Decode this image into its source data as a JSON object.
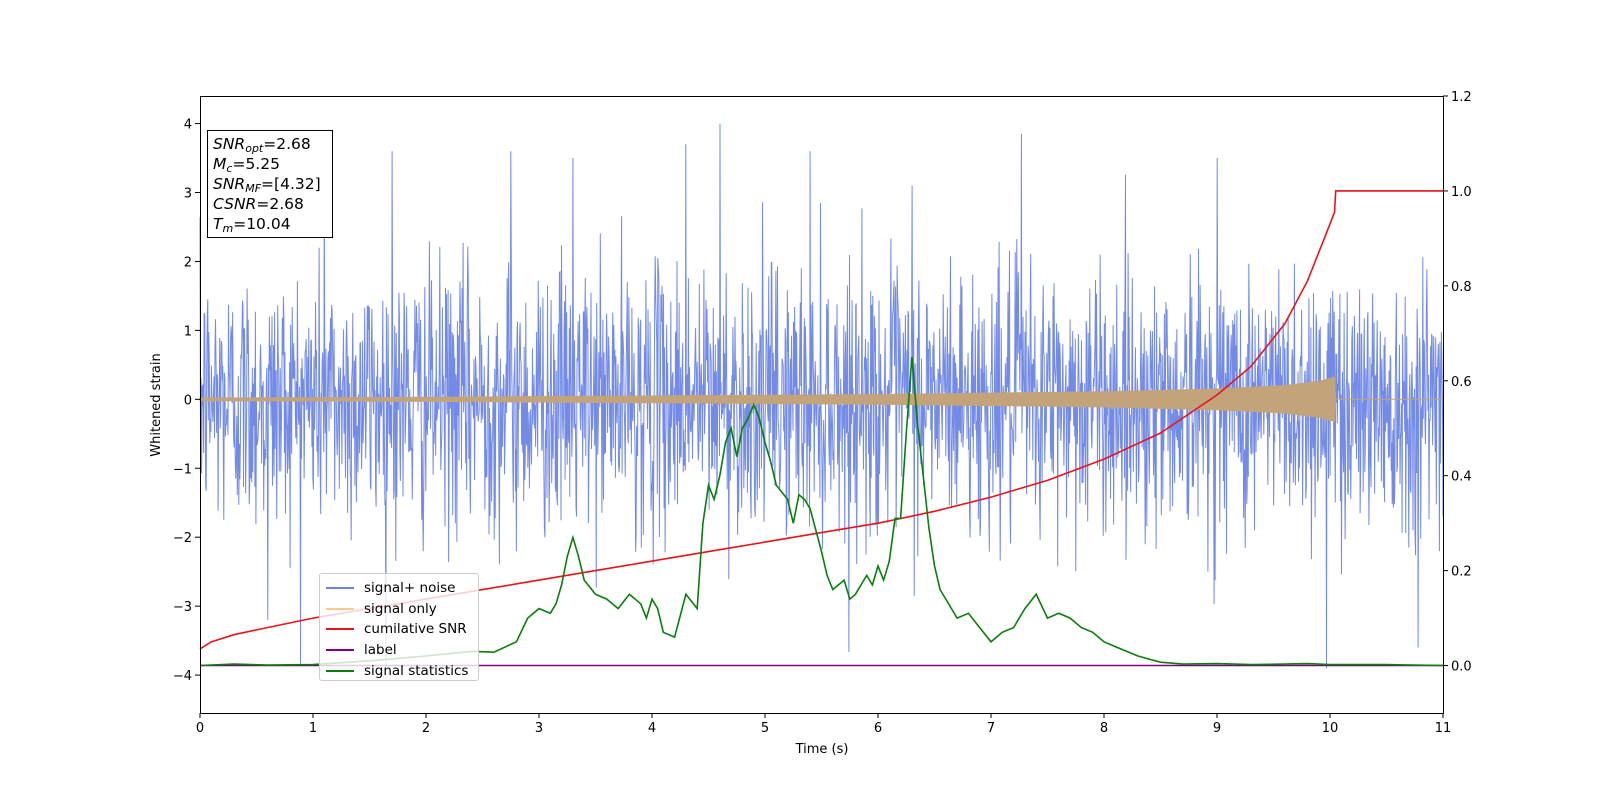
{
  "chart_data": {
    "type": "line",
    "xlabel": "Time (s)",
    "ylabel": "Whitened strain",
    "xlim": [
      0,
      11
    ],
    "ylim": [
      -4.55,
      4.4
    ],
    "y2lim": [
      -0.1,
      1.2
    ],
    "x_ticks": [
      "0",
      "1",
      "2",
      "3",
      "4",
      "5",
      "6",
      "7",
      "8",
      "9",
      "10",
      "11"
    ],
    "y_ticks": [
      "−4",
      "−3",
      "−2",
      "−1",
      "0",
      "1",
      "2",
      "3",
      "4"
    ],
    "y2_ticks": [
      "0.0",
      "0.2",
      "0.4",
      "0.6",
      "0.8",
      "1.0",
      "1.2"
    ],
    "grid": false,
    "legend_position": "lower-left",
    "annotation": {
      "snr_opt": "2.68",
      "mc": "5.25",
      "snr_mf": "[4.32]",
      "csnr": "2.68",
      "tm": "10.04"
    },
    "series": [
      {
        "name": "signal+ noise",
        "axis": "left",
        "color": "#6b85e6",
        "description_values": "noise band approx within [-2, 2] with spikes up to 4.0 and down to -3.9",
        "peaks": [
          [
            0.6,
            -3.2
          ],
          [
            1.1,
            3.4
          ],
          [
            1.7,
            3.6
          ],
          [
            2.75,
            3.6
          ],
          [
            3.3,
            3.5
          ],
          [
            4.3,
            3.7
          ],
          [
            4.6,
            4.0
          ],
          [
            5.4,
            3.6
          ],
          [
            6.3,
            3.1
          ],
          [
            7.27,
            3.85
          ],
          [
            9.0,
            3.5
          ],
          [
            9.97,
            -3.9
          ],
          [
            10.78,
            -3.6
          ]
        ]
      },
      {
        "name": "signal only",
        "axis": "left",
        "color": "#c2a37a",
        "envelope": [
          [
            0,
            0.02
          ],
          [
            2,
            0.03
          ],
          [
            4,
            0.05
          ],
          [
            6,
            0.07
          ],
          [
            8,
            0.11
          ],
          [
            9,
            0.15
          ],
          [
            9.6,
            0.2
          ],
          [
            9.9,
            0.26
          ],
          [
            10.04,
            0.32
          ],
          [
            10.05,
            0.0
          ],
          [
            11,
            0.0
          ]
        ]
      },
      {
        "name": "cumilative SNR",
        "axis": "right",
        "color": "#e8141a",
        "x": [
          0,
          0.1,
          0.3,
          0.5,
          1,
          1.5,
          2,
          2.5,
          3,
          3.5,
          4,
          4.5,
          5,
          5.5,
          6,
          6.5,
          7,
          7.5,
          8,
          8.5,
          9,
          9.3,
          9.6,
          9.8,
          9.95,
          10.04,
          10.05,
          11
        ],
        "y": [
          0.035,
          0.05,
          0.065,
          0.075,
          0.1,
          0.12,
          0.14,
          0.16,
          0.18,
          0.2,
          0.22,
          0.24,
          0.26,
          0.28,
          0.3,
          0.325,
          0.355,
          0.39,
          0.435,
          0.49,
          0.57,
          0.63,
          0.72,
          0.81,
          0.9,
          0.955,
          1.0,
          1.0
        ]
      },
      {
        "name": "label",
        "axis": "right",
        "color": "#800080",
        "x": [
          0,
          11
        ],
        "y": [
          0,
          0
        ]
      },
      {
        "name": "signal statistics",
        "axis": "right",
        "color": "#0a7d0a",
        "x": [
          0,
          0.3,
          0.6,
          1.0,
          1.5,
          2.0,
          2.2,
          2.4,
          2.6,
          2.8,
          2.9,
          3.0,
          3.1,
          3.15,
          3.2,
          3.25,
          3.3,
          3.35,
          3.4,
          3.5,
          3.6,
          3.7,
          3.8,
          3.9,
          3.95,
          4.0,
          4.05,
          4.1,
          4.2,
          4.3,
          4.4,
          4.45,
          4.5,
          4.55,
          4.6,
          4.65,
          4.7,
          4.75,
          4.8,
          4.85,
          4.9,
          4.95,
          5.0,
          5.05,
          5.1,
          5.2,
          5.25,
          5.3,
          5.35,
          5.4,
          5.5,
          5.55,
          5.6,
          5.7,
          5.75,
          5.8,
          5.9,
          5.95,
          6.0,
          6.05,
          6.1,
          6.15,
          6.2,
          6.25,
          6.3,
          6.35,
          6.4,
          6.45,
          6.5,
          6.55,
          6.6,
          6.7,
          6.8,
          6.9,
          7.0,
          7.1,
          7.2,
          7.3,
          7.4,
          7.5,
          7.6,
          7.7,
          7.8,
          7.9,
          8.0,
          8.1,
          8.3,
          8.5,
          8.7,
          9.0,
          9.3,
          9.6,
          9.8,
          10.0,
          10.5,
          11.0
        ],
        "y": [
          0.0,
          0.003,
          0.001,
          0.002,
          0.01,
          0.02,
          0.025,
          0.03,
          0.028,
          0.05,
          0.1,
          0.12,
          0.11,
          0.13,
          0.17,
          0.23,
          0.27,
          0.23,
          0.18,
          0.15,
          0.14,
          0.12,
          0.15,
          0.13,
          0.1,
          0.14,
          0.12,
          0.07,
          0.06,
          0.15,
          0.12,
          0.3,
          0.38,
          0.35,
          0.4,
          0.47,
          0.5,
          0.44,
          0.5,
          0.52,
          0.55,
          0.52,
          0.47,
          0.43,
          0.38,
          0.35,
          0.3,
          0.36,
          0.35,
          0.33,
          0.24,
          0.19,
          0.16,
          0.18,
          0.14,
          0.15,
          0.19,
          0.17,
          0.21,
          0.18,
          0.22,
          0.31,
          0.31,
          0.49,
          0.65,
          0.51,
          0.4,
          0.29,
          0.21,
          0.16,
          0.14,
          0.1,
          0.11,
          0.08,
          0.05,
          0.07,
          0.08,
          0.12,
          0.15,
          0.1,
          0.11,
          0.1,
          0.08,
          0.07,
          0.05,
          0.04,
          0.02,
          0.007,
          0.003,
          0.004,
          0.002,
          0.003,
          0.004,
          0.002,
          0.002,
          0.0
        ]
      }
    ]
  }
}
